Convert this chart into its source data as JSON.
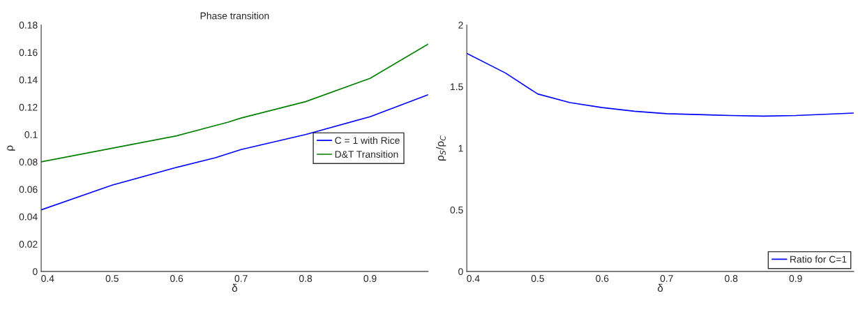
{
  "chart_data": [
    {
      "type": "line",
      "title": "Phase transition",
      "xlabel": "δ",
      "ylabel": "ρ",
      "xlim": [
        0.39,
        0.99
      ],
      "xticks": [
        0.4,
        0.5,
        0.6,
        0.7,
        0.8,
        0.9
      ],
      "ylim": [
        0,
        0.18
      ],
      "yticks": [
        0,
        0.02,
        0.04,
        0.06,
        0.08,
        0.1,
        0.12,
        0.14,
        0.16,
        0.18
      ],
      "grid": false,
      "legend": "right",
      "line_style": "solid",
      "series": [
        {
          "name": "C = 1 with Rice",
          "color": "#0000ff",
          "x": [
            0.39,
            0.5,
            0.6,
            0.66,
            0.7,
            0.8,
            0.9,
            0.99
          ],
          "values": [
            0.045,
            0.063,
            0.076,
            0.083,
            0.089,
            0.1,
            0.113,
            0.129
          ]
        },
        {
          "name": "D&T Transition",
          "color": "#008000",
          "x": [
            0.39,
            0.5,
            0.6,
            0.68,
            0.7,
            0.8,
            0.9,
            0.99
          ],
          "values": [
            0.08,
            0.09,
            0.099,
            0.109,
            0.112,
            0.124,
            0.141,
            0.166
          ]
        }
      ]
    },
    {
      "type": "line",
      "xlabel": "δ",
      "ylabel": "ρ$_{S}$/ρ$_{C}$",
      "xlim": [
        0.39,
        0.99
      ],
      "xticks": [
        0.4,
        0.5,
        0.6,
        0.7,
        0.8,
        0.9
      ],
      "ylim": [
        0,
        2
      ],
      "yticks": [
        0,
        0.5,
        1,
        1.5,
        2
      ],
      "grid": false,
      "legend": "bottom right",
      "line_style": "solid",
      "series": [
        {
          "name": "Ratio for C=1",
          "color": "#0000ff",
          "x": [
            0.39,
            0.45,
            0.5,
            0.55,
            0.6,
            0.65,
            0.7,
            0.8,
            0.85,
            0.9,
            0.99
          ],
          "values": [
            1.77,
            1.61,
            1.44,
            1.37,
            1.33,
            1.3,
            1.28,
            1.265,
            1.26,
            1.265,
            1.285
          ]
        }
      ]
    }
  ]
}
